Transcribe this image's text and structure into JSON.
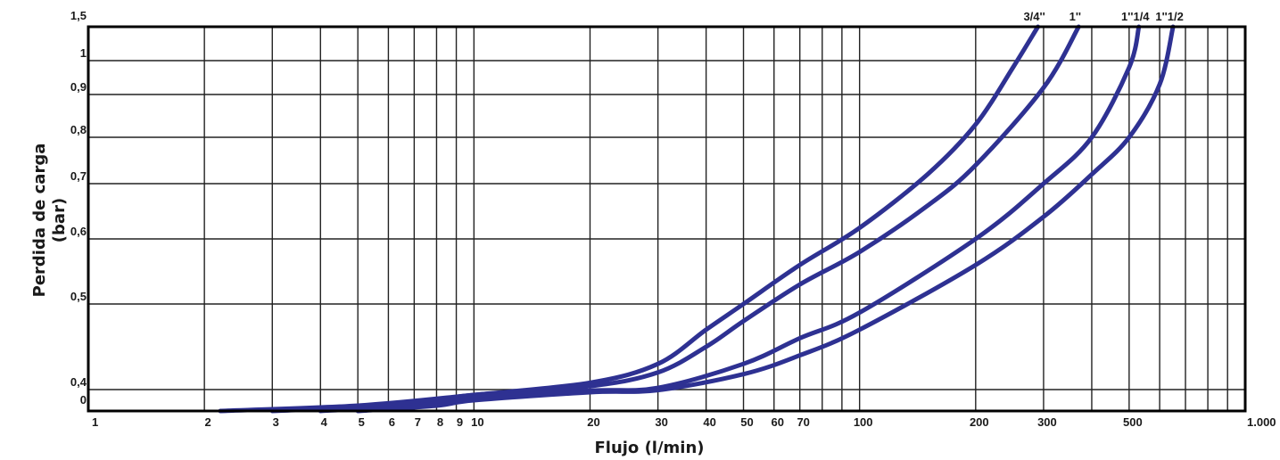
{
  "chart_data": {
    "type": "line",
    "title": "",
    "xlabel": "Flujo (l/min)",
    "ylabel": "Perdida de carga",
    "ylabel_unit": "(bar)",
    "x_scale": "log",
    "xlim": [
      1,
      1000
    ],
    "x_ticks": [
      {
        "value": 1,
        "label": "1"
      },
      {
        "value": 2,
        "label": "2"
      },
      {
        "value": 3,
        "label": "3"
      },
      {
        "value": 4,
        "label": "4"
      },
      {
        "value": 5,
        "label": "5"
      },
      {
        "value": 6,
        "label": "6"
      },
      {
        "value": 7,
        "label": "7"
      },
      {
        "value": 8,
        "label": "8"
      },
      {
        "value": 9,
        "label": "9"
      },
      {
        "value": 10,
        "label": "10"
      },
      {
        "value": 20,
        "label": "20"
      },
      {
        "value": 30,
        "label": "30"
      },
      {
        "value": 40,
        "label": "40"
      },
      {
        "value": 50,
        "label": "50"
      },
      {
        "value": 60,
        "label": "60"
      },
      {
        "value": 70,
        "label": "70"
      },
      {
        "value": 100,
        "label": "100"
      },
      {
        "value": 200,
        "label": "200"
      },
      {
        "value": 300,
        "label": "300"
      },
      {
        "value": 500,
        "label": "500"
      },
      {
        "value": 1000,
        "label": "1.000"
      }
    ],
    "x_grid": [
      2,
      3,
      4,
      5,
      6,
      7,
      8,
      9,
      10,
      20,
      30,
      40,
      50,
      60,
      70,
      80,
      90,
      100,
      200,
      300,
      400,
      500,
      600,
      700,
      800,
      900
    ],
    "ylim": [
      0,
      1.5
    ],
    "y_ticks": [
      {
        "value": 0,
        "label": "0"
      },
      {
        "value": 0.4,
        "label": "0,4"
      },
      {
        "value": 0.5,
        "label": "0,5"
      },
      {
        "value": 0.6,
        "label": "0,6"
      },
      {
        "value": 0.7,
        "label": "0,7"
      },
      {
        "value": 0.8,
        "label": "0,8"
      },
      {
        "value": 0.9,
        "label": "0,9"
      },
      {
        "value": 1,
        "label": "1"
      },
      {
        "value": 1.5,
        "label": "1,5"
      }
    ],
    "grid": true,
    "line_color": "#2e3192",
    "series": [
      {
        "name": "3/4''",
        "x": [
          2.2,
          5,
          10,
          20,
          30,
          40,
          50,
          70,
          100,
          150,
          200,
          250,
          290
        ],
        "y": [
          0,
          0.1,
          0.3,
          0.408,
          0.43,
          0.47,
          0.5,
          0.56,
          0.62,
          0.72,
          0.83,
          0.98,
          1.5
        ]
      },
      {
        "name": "1''",
        "x": [
          3,
          6,
          10,
          20,
          30,
          40,
          50,
          70,
          100,
          150,
          200,
          300,
          370
        ],
        "y": [
          0,
          0.1,
          0.3,
          0.404,
          0.42,
          0.45,
          0.48,
          0.53,
          0.58,
          0.66,
          0.74,
          0.92,
          1.5
        ]
      },
      {
        "name": "1''1/4",
        "x": [
          4,
          7,
          10,
          20,
          30,
          50,
          70,
          100,
          200,
          300,
          400,
          500,
          530
        ],
        "y": [
          0,
          0.1,
          0.25,
          0.38,
          0.402,
          0.43,
          0.46,
          0.49,
          0.6,
          0.7,
          0.8,
          0.98,
          1.5
        ]
      },
      {
        "name": "1''1/2",
        "x": [
          5,
          8,
          10,
          20,
          30,
          50,
          70,
          100,
          200,
          300,
          400,
          500,
          600,
          650
        ],
        "y": [
          0,
          0.1,
          0.2,
          0.35,
          0.39,
          0.418,
          0.44,
          0.47,
          0.56,
          0.64,
          0.72,
          0.8,
          0.93,
          1.5
        ]
      }
    ]
  }
}
